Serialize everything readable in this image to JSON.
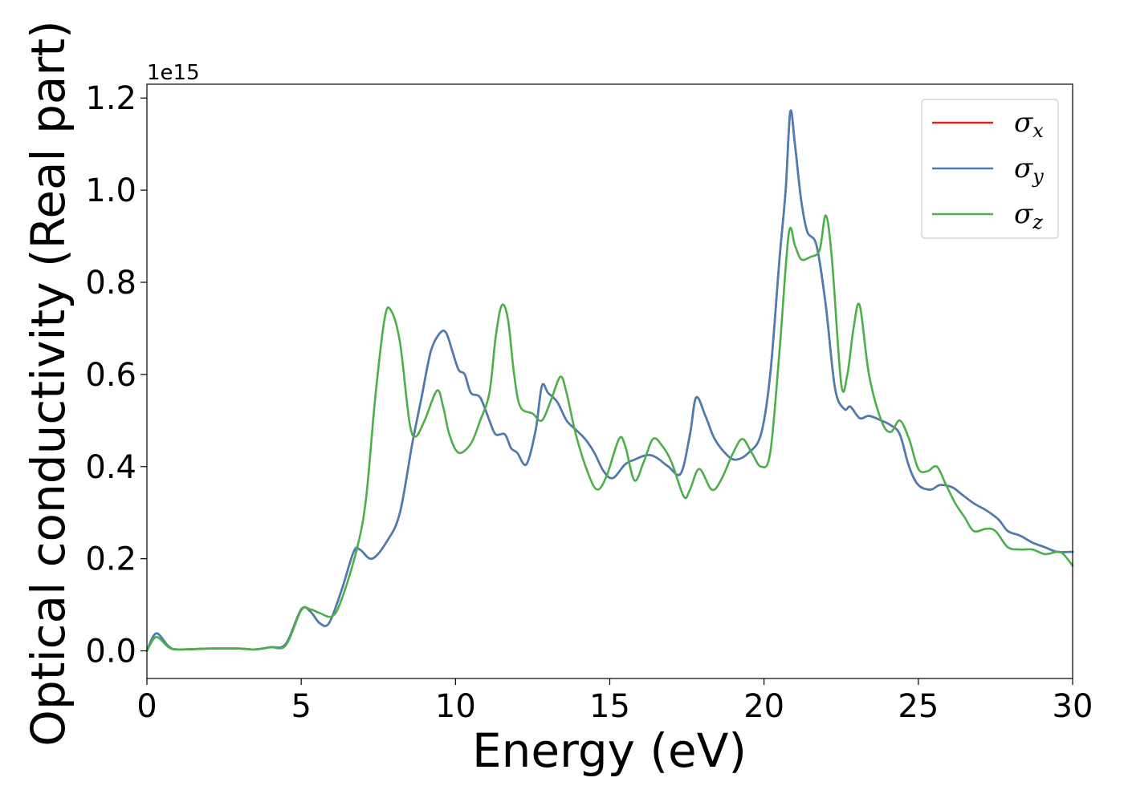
{
  "chart_data": {
    "type": "line",
    "xlabel": "Energy (eV)",
    "ylabel": "Optical conductivity (Real part)",
    "y_offset_label": "1e15",
    "xlim": [
      0,
      30
    ],
    "ylim": [
      -0.06,
      1.23
    ],
    "x_ticks": [
      0,
      5,
      10,
      15,
      20,
      25,
      30
    ],
    "y_ticks": [
      0.0,
      0.2,
      0.4,
      0.6,
      0.8,
      1.0,
      1.2
    ],
    "x_tick_labels": [
      "0",
      "5",
      "10",
      "15",
      "20",
      "25",
      "30"
    ],
    "y_tick_labels": [
      "0.0",
      "0.2",
      "0.4",
      "0.6",
      "0.8",
      "1.0",
      "1.2"
    ],
    "legend_position": "top-right",
    "series": [
      {
        "symbol": "σ",
        "subscript": "x",
        "color": "#d62728",
        "points": [
          [
            0,
            0
          ],
          [
            0.3,
            0.038
          ],
          [
            0.7,
            0.01
          ],
          [
            1,
            0.003
          ],
          [
            2,
            0.005
          ],
          [
            3,
            0.005
          ],
          [
            3.5,
            0.003
          ],
          [
            4,
            0.008
          ],
          [
            4.5,
            0.015
          ],
          [
            5,
            0.09
          ],
          [
            5.3,
            0.085
          ],
          [
            5.6,
            0.06
          ],
          [
            5.9,
            0.06
          ],
          [
            6.3,
            0.13
          ],
          [
            6.7,
            0.215
          ],
          [
            6.9,
            0.22
          ],
          [
            7.3,
            0.2
          ],
          [
            7.8,
            0.24
          ],
          [
            8.2,
            0.3
          ],
          [
            8.6,
            0.45
          ],
          [
            8.9,
            0.55
          ],
          [
            9.2,
            0.65
          ],
          [
            9.5,
            0.69
          ],
          [
            9.7,
            0.69
          ],
          [
            9.9,
            0.65
          ],
          [
            10.1,
            0.61
          ],
          [
            10.3,
            0.6
          ],
          [
            10.5,
            0.56
          ],
          [
            10.8,
            0.55
          ],
          [
            11.1,
            0.5
          ],
          [
            11.3,
            0.47
          ],
          [
            11.6,
            0.47
          ],
          [
            11.8,
            0.44
          ],
          [
            12,
            0.43
          ],
          [
            12.3,
            0.405
          ],
          [
            12.6,
            0.48
          ],
          [
            12.8,
            0.575
          ],
          [
            13,
            0.56
          ],
          [
            13.3,
            0.54
          ],
          [
            13.6,
            0.5
          ],
          [
            13.9,
            0.48
          ],
          [
            14.2,
            0.46
          ],
          [
            14.5,
            0.43
          ],
          [
            14.8,
            0.39
          ],
          [
            15.1,
            0.375
          ],
          [
            15.5,
            0.405
          ],
          [
            15.8,
            0.415
          ],
          [
            16.2,
            0.425
          ],
          [
            16.5,
            0.42
          ],
          [
            16.9,
            0.4
          ],
          [
            17.3,
            0.385
          ],
          [
            17.6,
            0.47
          ],
          [
            17.8,
            0.55
          ],
          [
            18.1,
            0.51
          ],
          [
            18.4,
            0.46
          ],
          [
            18.8,
            0.425
          ],
          [
            19.1,
            0.415
          ],
          [
            19.5,
            0.43
          ],
          [
            19.9,
            0.47
          ],
          [
            20.2,
            0.6
          ],
          [
            20.5,
            0.85
          ],
          [
            20.7,
            1.0
          ],
          [
            20.85,
            1.17
          ],
          [
            21,
            1.1
          ],
          [
            21.2,
            0.98
          ],
          [
            21.4,
            0.91
          ],
          [
            21.7,
            0.88
          ],
          [
            22,
            0.75
          ],
          [
            22.3,
            0.57
          ],
          [
            22.6,
            0.525
          ],
          [
            22.8,
            0.53
          ],
          [
            23.1,
            0.505
          ],
          [
            23.4,
            0.51
          ],
          [
            23.8,
            0.5
          ],
          [
            24.1,
            0.49
          ],
          [
            24.4,
            0.47
          ],
          [
            24.7,
            0.4
          ],
          [
            25,
            0.36
          ],
          [
            25.4,
            0.35
          ],
          [
            25.7,
            0.36
          ],
          [
            26.1,
            0.355
          ],
          [
            26.4,
            0.34
          ],
          [
            26.8,
            0.32
          ],
          [
            27.2,
            0.305
          ],
          [
            27.6,
            0.285
          ],
          [
            27.9,
            0.26
          ],
          [
            28.3,
            0.25
          ],
          [
            28.7,
            0.235
          ],
          [
            29.1,
            0.225
          ],
          [
            29.5,
            0.215
          ],
          [
            30,
            0.215
          ]
        ]
      },
      {
        "symbol": "σ",
        "subscript": "y",
        "color": "#4a7db5",
        "points": [
          [
            0,
            0
          ],
          [
            0.3,
            0.038
          ],
          [
            0.7,
            0.01
          ],
          [
            1,
            0.003
          ],
          [
            2,
            0.005
          ],
          [
            3,
            0.005
          ],
          [
            3.5,
            0.003
          ],
          [
            4,
            0.008
          ],
          [
            4.5,
            0.015
          ],
          [
            5,
            0.09
          ],
          [
            5.3,
            0.085
          ],
          [
            5.6,
            0.06
          ],
          [
            5.9,
            0.06
          ],
          [
            6.3,
            0.13
          ],
          [
            6.7,
            0.215
          ],
          [
            6.9,
            0.22
          ],
          [
            7.3,
            0.2
          ],
          [
            7.8,
            0.24
          ],
          [
            8.2,
            0.3
          ],
          [
            8.6,
            0.45
          ],
          [
            8.9,
            0.55
          ],
          [
            9.2,
            0.65
          ],
          [
            9.5,
            0.69
          ],
          [
            9.7,
            0.69
          ],
          [
            9.9,
            0.65
          ],
          [
            10.1,
            0.61
          ],
          [
            10.3,
            0.6
          ],
          [
            10.5,
            0.56
          ],
          [
            10.8,
            0.55
          ],
          [
            11.1,
            0.5
          ],
          [
            11.3,
            0.47
          ],
          [
            11.6,
            0.47
          ],
          [
            11.8,
            0.44
          ],
          [
            12,
            0.43
          ],
          [
            12.3,
            0.405
          ],
          [
            12.6,
            0.48
          ],
          [
            12.8,
            0.575
          ],
          [
            13,
            0.56
          ],
          [
            13.3,
            0.54
          ],
          [
            13.6,
            0.5
          ],
          [
            13.9,
            0.48
          ],
          [
            14.2,
            0.46
          ],
          [
            14.5,
            0.43
          ],
          [
            14.8,
            0.39
          ],
          [
            15.1,
            0.375
          ],
          [
            15.5,
            0.405
          ],
          [
            15.8,
            0.415
          ],
          [
            16.2,
            0.425
          ],
          [
            16.5,
            0.42
          ],
          [
            16.9,
            0.4
          ],
          [
            17.3,
            0.385
          ],
          [
            17.6,
            0.47
          ],
          [
            17.8,
            0.55
          ],
          [
            18.1,
            0.51
          ],
          [
            18.4,
            0.46
          ],
          [
            18.8,
            0.425
          ],
          [
            19.1,
            0.415
          ],
          [
            19.5,
            0.43
          ],
          [
            19.9,
            0.47
          ],
          [
            20.2,
            0.6
          ],
          [
            20.5,
            0.85
          ],
          [
            20.7,
            1.0
          ],
          [
            20.85,
            1.17
          ],
          [
            21,
            1.1
          ],
          [
            21.2,
            0.98
          ],
          [
            21.4,
            0.91
          ],
          [
            21.7,
            0.88
          ],
          [
            22,
            0.75
          ],
          [
            22.3,
            0.57
          ],
          [
            22.6,
            0.525
          ],
          [
            22.8,
            0.53
          ],
          [
            23.1,
            0.505
          ],
          [
            23.4,
            0.51
          ],
          [
            23.8,
            0.5
          ],
          [
            24.1,
            0.49
          ],
          [
            24.4,
            0.47
          ],
          [
            24.7,
            0.4
          ],
          [
            25,
            0.36
          ],
          [
            25.4,
            0.35
          ],
          [
            25.7,
            0.36
          ],
          [
            26.1,
            0.355
          ],
          [
            26.4,
            0.34
          ],
          [
            26.8,
            0.32
          ],
          [
            27.2,
            0.305
          ],
          [
            27.6,
            0.285
          ],
          [
            27.9,
            0.26
          ],
          [
            28.3,
            0.25
          ],
          [
            28.7,
            0.235
          ],
          [
            29.1,
            0.225
          ],
          [
            29.5,
            0.215
          ],
          [
            30,
            0.215
          ]
        ]
      },
      {
        "symbol": "σ",
        "subscript": "z",
        "color": "#4daf4a",
        "points": [
          [
            0,
            0
          ],
          [
            0.3,
            0.03
          ],
          [
            0.7,
            0.008
          ],
          [
            1,
            0.003
          ],
          [
            2,
            0.005
          ],
          [
            3,
            0.005
          ],
          [
            3.5,
            0.003
          ],
          [
            4,
            0.008
          ],
          [
            4.5,
            0.012
          ],
          [
            5,
            0.088
          ],
          [
            5.3,
            0.09
          ],
          [
            5.6,
            0.082
          ],
          [
            6,
            0.075
          ],
          [
            6.3,
            0.11
          ],
          [
            6.8,
            0.22
          ],
          [
            7.1,
            0.33
          ],
          [
            7.4,
            0.55
          ],
          [
            7.7,
            0.72
          ],
          [
            7.9,
            0.74
          ],
          [
            8.2,
            0.67
          ],
          [
            8.5,
            0.5
          ],
          [
            8.7,
            0.465
          ],
          [
            9,
            0.5
          ],
          [
            9.4,
            0.565
          ],
          [
            9.6,
            0.53
          ],
          [
            9.8,
            0.47
          ],
          [
            10.1,
            0.43
          ],
          [
            10.5,
            0.45
          ],
          [
            10.8,
            0.5
          ],
          [
            11.1,
            0.56
          ],
          [
            11.3,
            0.68
          ],
          [
            11.5,
            0.75
          ],
          [
            11.7,
            0.72
          ],
          [
            11.9,
            0.6
          ],
          [
            12.1,
            0.53
          ],
          [
            12.5,
            0.515
          ],
          [
            12.8,
            0.5
          ],
          [
            13.1,
            0.545
          ],
          [
            13.4,
            0.595
          ],
          [
            13.6,
            0.56
          ],
          [
            13.9,
            0.47
          ],
          [
            14.3,
            0.385
          ],
          [
            14.6,
            0.35
          ],
          [
            14.9,
            0.38
          ],
          [
            15.3,
            0.46
          ],
          [
            15.5,
            0.445
          ],
          [
            15.8,
            0.37
          ],
          [
            16.1,
            0.41
          ],
          [
            16.4,
            0.46
          ],
          [
            16.7,
            0.445
          ],
          [
            17,
            0.41
          ],
          [
            17.4,
            0.335
          ],
          [
            17.6,
            0.35
          ],
          [
            17.9,
            0.395
          ],
          [
            18.3,
            0.35
          ],
          [
            18.6,
            0.37
          ],
          [
            19,
            0.43
          ],
          [
            19.3,
            0.46
          ],
          [
            19.6,
            0.43
          ],
          [
            19.9,
            0.4
          ],
          [
            20.2,
            0.43
          ],
          [
            20.5,
            0.65
          ],
          [
            20.8,
            0.905
          ],
          [
            21,
            0.88
          ],
          [
            21.2,
            0.85
          ],
          [
            21.5,
            0.855
          ],
          [
            21.8,
            0.87
          ],
          [
            22,
            0.945
          ],
          [
            22.2,
            0.85
          ],
          [
            22.5,
            0.58
          ],
          [
            22.7,
            0.6
          ],
          [
            22.9,
            0.7
          ],
          [
            23.1,
            0.75
          ],
          [
            23.4,
            0.6
          ],
          [
            23.8,
            0.5
          ],
          [
            24.1,
            0.475
          ],
          [
            24.4,
            0.5
          ],
          [
            24.7,
            0.46
          ],
          [
            25,
            0.395
          ],
          [
            25.3,
            0.39
          ],
          [
            25.6,
            0.4
          ],
          [
            25.9,
            0.36
          ],
          [
            26.2,
            0.32
          ],
          [
            26.5,
            0.29
          ],
          [
            26.8,
            0.26
          ],
          [
            27.2,
            0.265
          ],
          [
            27.5,
            0.26
          ],
          [
            27.9,
            0.225
          ],
          [
            28.3,
            0.22
          ],
          [
            28.7,
            0.22
          ],
          [
            29.1,
            0.21
          ],
          [
            29.5,
            0.215
          ],
          [
            29.7,
            0.21
          ],
          [
            30,
            0.185
          ]
        ]
      }
    ]
  }
}
